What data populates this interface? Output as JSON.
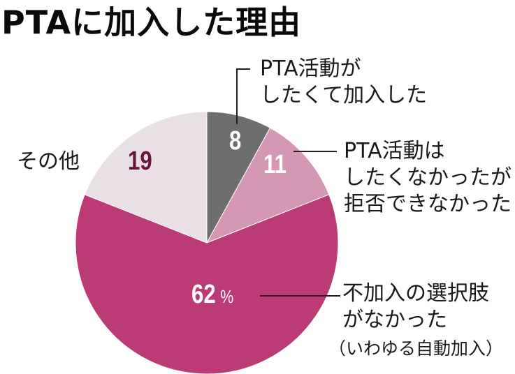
{
  "title": "PTAに加入した理由",
  "chart_data": {
    "type": "pie",
    "title": "PTAに加入した理由",
    "unit": "%",
    "start_angle": "12 o'clock, clockwise",
    "slices": [
      {
        "label": "PTA活動がしたくて加入した",
        "value": 8,
        "color": "#6e6e6e",
        "value_color": "#ffffff"
      },
      {
        "label": "PTA活動はしたくなかったが拒否できなかった",
        "value": 11,
        "color": "#d497b4",
        "value_color": "#ffffff"
      },
      {
        "label": "不加入の選択肢がなかった（いわゆる自動加入）",
        "value": 62,
        "color": "#bb3b77",
        "value_color": "#ffffff"
      },
      {
        "label": "その他",
        "value": 19,
        "color": "#e9e0e6",
        "value_color": "#6b1540"
      }
    ]
  },
  "labels": {
    "s1": {
      "line1": "PTA活動が",
      "line2": "したくて加入した",
      "value": "8"
    },
    "s2": {
      "line1": "PTA活動は",
      "line2": "したくなかったが",
      "line3": "拒否できなかった",
      "value": "11"
    },
    "s3": {
      "line1": "不加入の選択肢",
      "line2": "がなかった",
      "line3": "（いわゆる自動加入）",
      "value": "62",
      "unit": "%"
    },
    "s4": {
      "line1": "その他",
      "value": "19"
    }
  }
}
